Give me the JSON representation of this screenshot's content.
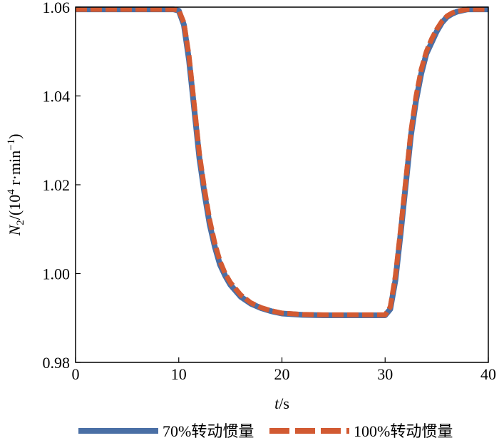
{
  "chart_data": {
    "type": "line",
    "title": "",
    "xlabel": "t/s",
    "xlabel_parts": {
      "var": "t",
      "unit": "/s"
    },
    "ylabel_parts": {
      "sym": "N",
      "sub": "2",
      "pre": "/(10",
      "sup1": "4",
      "mid": " r·min",
      "sup2": "−1",
      "post": ")"
    },
    "xlim": [
      0,
      40
    ],
    "ylim": [
      0.98,
      1.06
    ],
    "xticks": [
      0,
      10,
      20,
      30,
      40
    ],
    "xtick_labels": [
      "0",
      "10",
      "20",
      "30",
      "40"
    ],
    "yticks": [
      0.98,
      1.0,
      1.02,
      1.04,
      1.06
    ],
    "ytick_labels": [
      "0.98",
      "1.00",
      "1.02",
      "1.04",
      "1.06"
    ],
    "grid": false,
    "legend_position": "bottom",
    "series": [
      {
        "name": "70%转动惯量",
        "color": "#4a6fa5",
        "style": "solid",
        "x": [
          0,
          2,
          4,
          6,
          8,
          9.5,
          10,
          10.5,
          11,
          11.5,
          12,
          12.5,
          13,
          13.5,
          14,
          14.5,
          15,
          16,
          17,
          18,
          19,
          20,
          22,
          24,
          26,
          28,
          29,
          30,
          30.5,
          31,
          31.5,
          32,
          32.5,
          33,
          33.5,
          34,
          34.5,
          35,
          35.5,
          36,
          36.5,
          37,
          38,
          39,
          40
        ],
        "y": [
          1.0595,
          1.0595,
          1.0595,
          1.0595,
          1.0595,
          1.0595,
          1.0592,
          1.056,
          1.048,
          1.037,
          1.026,
          1.018,
          1.011,
          1.006,
          1.002,
          0.9995,
          0.9975,
          0.9948,
          0.9932,
          0.9922,
          0.9915,
          0.991,
          0.9907,
          0.9906,
          0.9906,
          0.9906,
          0.9906,
          0.9906,
          0.992,
          0.9985,
          1.009,
          1.02,
          1.031,
          1.039,
          1.045,
          1.0495,
          1.052,
          1.0545,
          1.0565,
          1.0578,
          1.0585,
          1.059,
          1.0595,
          1.0595,
          1.0595
        ]
      },
      {
        "name": "100%转动惯量",
        "color": "#d25a32",
        "style": "dashed",
        "x": [
          0,
          2,
          4,
          6,
          8,
          9.5,
          10,
          10.5,
          11,
          11.5,
          12,
          12.5,
          13,
          13.5,
          14,
          14.5,
          15,
          16,
          17,
          18,
          19,
          20,
          22,
          24,
          26,
          28,
          29,
          30,
          30.5,
          31,
          31.5,
          32,
          32.5,
          33,
          33.5,
          34,
          34.5,
          35,
          35.5,
          36,
          36.5,
          37,
          38,
          39,
          40
        ],
        "y": [
          1.0595,
          1.0595,
          1.0595,
          1.0595,
          1.0595,
          1.0595,
          1.0593,
          1.0565,
          1.049,
          1.038,
          1.027,
          1.019,
          1.012,
          1.0068,
          1.0028,
          1.0,
          0.998,
          0.9952,
          0.9934,
          0.9923,
          0.9916,
          0.9911,
          0.9908,
          0.9907,
          0.9907,
          0.9907,
          0.9907,
          0.9907,
          0.9925,
          0.9995,
          1.01,
          1.021,
          1.032,
          1.04,
          1.046,
          1.05,
          1.0528,
          1.055,
          1.0568,
          1.058,
          1.0587,
          1.0591,
          1.0595,
          1.0595,
          1.0595
        ]
      }
    ]
  }
}
